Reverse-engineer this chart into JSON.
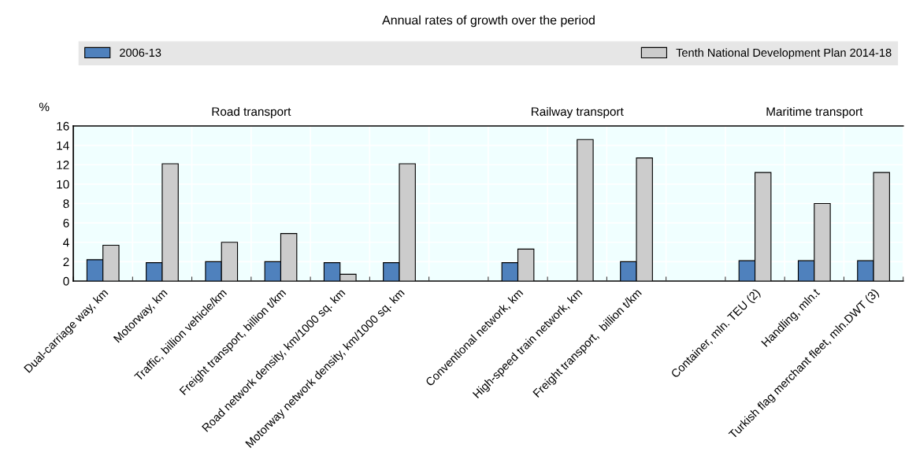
{
  "chart_data": {
    "type": "bar",
    "title": "Annual rates of growth over the period",
    "ylabel": "%",
    "categories": [
      "Dual-carriage way, km",
      "Motorway, km",
      "Traffic, billion vehicle/km",
      "Freight transport, billion t/km",
      "Road network density, km/1000 sq. km",
      "Motorway network density, km/1000 sq. km",
      null,
      "Conventional network, km",
      "High-speed train network, km",
      "Freight transport,  billion t/km",
      null,
      "Container, mln. TEU (2)",
      "Handling, mln.t",
      "Turkish flag merchant fleet, mln.DWT (3)"
    ],
    "series": [
      {
        "name": "2006-13",
        "color": "#4f81bd",
        "values": [
          2.2,
          1.9,
          2.0,
          2.0,
          1.9,
          1.9,
          null,
          1.9,
          null,
          2.0,
          null,
          2.1,
          2.1,
          2.1
        ]
      },
      {
        "name": "Tenth National Development Plan 2014-18",
        "color": "#cccccc",
        "values": [
          3.7,
          12.1,
          4.0,
          4.9,
          0.7,
          12.1,
          null,
          3.3,
          14.6,
          12.7,
          null,
          11.2,
          8.0,
          11.2
        ]
      }
    ],
    "annotations": [
      "Road transport",
      "Railway transport",
      "Maritime transport"
    ],
    "ylim": [
      0,
      16
    ],
    "yticks": [
      0,
      2,
      4,
      6,
      8,
      10,
      12,
      14,
      16
    ],
    "grid": true,
    "legend": "top"
  }
}
